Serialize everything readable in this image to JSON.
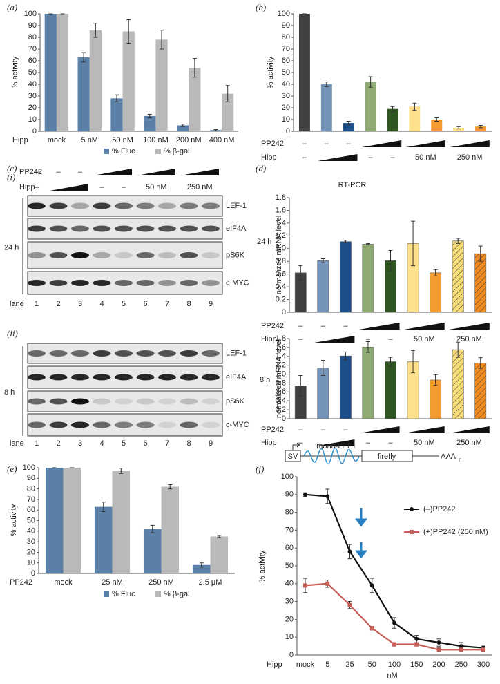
{
  "chart_data": [
    {
      "panel": "(a)",
      "type": "bar",
      "ylabel": "% activity",
      "x_prefix": "Hipp",
      "categories": [
        "mock",
        "5 nM",
        "50 nM",
        "100 nM",
        "200 nM",
        "400 nM"
      ],
      "series": [
        {
          "name": "% Fluc",
          "color": "#5b80a8",
          "values": [
            100,
            63,
            28,
            13,
            5,
            1
          ],
          "errors": [
            0,
            4,
            3,
            1.5,
            1,
            0.5
          ]
        },
        {
          "name": "% β-gal",
          "color": "#b9b9b9",
          "values": [
            100,
            86,
            85,
            78,
            54,
            32
          ],
          "errors": [
            0,
            6,
            10,
            8,
            8,
            7
          ]
        }
      ],
      "ylim": [
        0,
        100
      ],
      "yticks": [
        0,
        10,
        20,
        30,
        40,
        50,
        60,
        70,
        80,
        90,
        100
      ],
      "legend": "bottom"
    },
    {
      "panel": "(b)",
      "type": "bar",
      "ylabel": "% activity",
      "categories": [
        null,
        null,
        null,
        null,
        null,
        null,
        null,
        null,
        null
      ],
      "values": [
        100,
        40,
        7,
        42,
        19,
        21,
        10,
        3,
        4
      ],
      "errors": [
        0,
        2,
        1.5,
        4.5,
        2,
        3,
        1.5,
        1,
        1
      ],
      "colors": [
        "#404040",
        "#7393b8",
        "#1c4e8a",
        "#8fab73",
        "#2f5621",
        "#ffe08c",
        "#f59a2e",
        "#ffe08c",
        "#f59a2e"
      ],
      "ylim": [
        0,
        100
      ],
      "yticks": [
        0,
        10,
        20,
        30,
        40,
        50,
        60,
        70,
        80,
        90,
        100
      ],
      "rows": [
        {
          "label": "PP242",
          "texts": [
            "–",
            "–",
            "–"
          ]
        },
        {
          "label": "Hipp",
          "texts": [
            "–",
            "–",
            "–",
            "50 nM",
            "250 nM"
          ]
        }
      ]
    },
    {
      "panel": "(d)",
      "type": "bar",
      "title": "RT-PCR",
      "time": "24 h",
      "ylabel": "normalized mRNA level",
      "categories": [
        null,
        null,
        null,
        null,
        null,
        null,
        null,
        null,
        null
      ],
      "values": [
        0.62,
        0.81,
        1.11,
        1.07,
        0.81,
        1.08,
        0.62,
        1.12,
        0.92
      ],
      "errors": [
        0.11,
        0.03,
        0.02,
        0.01,
        0.16,
        0.35,
        0.05,
        0.04,
        0.12
      ],
      "colors": [
        "#404040",
        "#7393b8",
        "#1c4e8a",
        "#8fab73",
        "#2f5621",
        "#ffe08c",
        "#f59a2e",
        "#f7dc7a",
        "#f08a1e"
      ],
      "hatched": [
        false,
        false,
        false,
        false,
        false,
        false,
        false,
        true,
        true
      ],
      "ylim": [
        0,
        1.8
      ],
      "yticks": [
        0,
        0.2,
        0.4,
        0.6,
        0.8,
        {
          "value": 1,
          "label": "1.0"
        },
        1.2,
        1.4,
        1.6,
        1.8
      ],
      "rows": [
        {
          "label": "PP242",
          "texts": [
            "–",
            "–",
            "–"
          ]
        },
        {
          "label": "Hipp",
          "texts": [
            "–",
            "–",
            "–",
            "50 nM",
            "250 nM"
          ]
        }
      ]
    },
    {
      "type": "bar",
      "time": "8 h",
      "ylabel": "normalized mRNA level",
      "categories": [
        null,
        null,
        null,
        null,
        null,
        null,
        null,
        null,
        null
      ],
      "values": [
        0.74,
        1.14,
        1.41,
        1.61,
        1.28,
        1.28,
        0.87,
        1.55,
        1.25
      ],
      "errors": [
        0.23,
        0.17,
        0.09,
        0.12,
        0.1,
        0.25,
        0.12,
        0.17,
        0.12
      ],
      "colors": [
        "#404040",
        "#7393b8",
        "#1c4e8a",
        "#8fab73",
        "#2f5621",
        "#ffe08c",
        "#f59a2e",
        "#f7dc7a",
        "#f08a1e"
      ],
      "hatched": [
        false,
        false,
        false,
        false,
        false,
        false,
        false,
        true,
        true
      ],
      "ylim": [
        0,
        1.8
      ],
      "yticks": [
        0,
        0.2,
        0.4,
        0.6,
        0.8,
        {
          "value": 1,
          "label": "1.0"
        },
        1.2,
        1.4,
        1.6,
        1.8
      ],
      "rows": [
        {
          "label": "PP242",
          "texts": [
            "–",
            "–",
            "–"
          ]
        },
        {
          "label": "Hipp",
          "texts": [
            "–",
            "–",
            "–",
            "50 nM",
            "250 nM"
          ]
        }
      ]
    },
    {
      "panel": "(e)",
      "type": "bar",
      "ylabel": "% activity",
      "x_prefix": "PP242",
      "categories": [
        "mock",
        "25 nM",
        "250 nM",
        "2.5 μM"
      ],
      "series": [
        {
          "name": "% Fluc",
          "color": "#5b80a8",
          "values": [
            100,
            63,
            42,
            8
          ],
          "errors": [
            0,
            4.5,
            3.5,
            2
          ]
        },
        {
          "name": "% β-gal",
          "color": "#b9b9b9",
          "values": [
            100,
            97,
            82,
            35
          ],
          "errors": [
            0,
            2.5,
            2,
            1
          ]
        }
      ],
      "ylim": [
        0,
        100
      ],
      "yticks": [
        0,
        10,
        20,
        30,
        40,
        50,
        60,
        70,
        80,
        90,
        100
      ],
      "legend": "bottom"
    },
    {
      "panel": "(f)",
      "type": "line",
      "ylabel": "% activity",
      "x_prefix": "Hipp",
      "xlabel": "nM",
      "construct": {
        "promoter": "SV",
        "name": "mono-LEF1",
        "reporter": "firefly",
        "tail": "AAA",
        "tail_sub": "n"
      },
      "categories": [
        "mock",
        "5",
        "25",
        "50",
        "100",
        "150",
        "200",
        "250",
        "300"
      ],
      "series": [
        {
          "name": "(–)PP242",
          "color": "#111111",
          "marker": "circle",
          "values": [
            90,
            89,
            58,
            39,
            18,
            9,
            7,
            5,
            4
          ],
          "errors": [
            1,
            4,
            4,
            4,
            3,
            2,
            2,
            2,
            1
          ]
        },
        {
          "name": "(+)PP242 (250 nM)",
          "color": "#c65f58",
          "marker": "square",
          "values": [
            39,
            40,
            28,
            15,
            6,
            6,
            3,
            3,
            3
          ],
          "errors": [
            4,
            2,
            2,
            1,
            1,
            1,
            1,
            1,
            1
          ]
        }
      ],
      "ylim": [
        0,
        100
      ],
      "yticks": [
        0,
        10,
        20,
        30,
        40,
        50,
        60,
        70,
        80,
        90,
        100
      ],
      "legend": "right"
    }
  ],
  "blots": {
    "panel": "(c)",
    "rows": [
      {
        "label": "PP242",
        "texts": [
          "–",
          "–",
          "–"
        ]
      },
      {
        "label": "Hipp",
        "texts": [
          "–",
          "–",
          "–",
          "50 nM",
          "250 nM"
        ]
      }
    ],
    "blocks": [
      {
        "sub": "(i)",
        "time": "24 h"
      },
      {
        "sub": "(ii)",
        "time": "8 h"
      }
    ],
    "bands": [
      "LEF-1",
      "eIF4A",
      "pS6K",
      "c-MYC"
    ],
    "lane_label": "lane",
    "lanes": [
      1,
      2,
      3,
      4,
      5,
      6,
      7,
      8,
      9
    ]
  }
}
